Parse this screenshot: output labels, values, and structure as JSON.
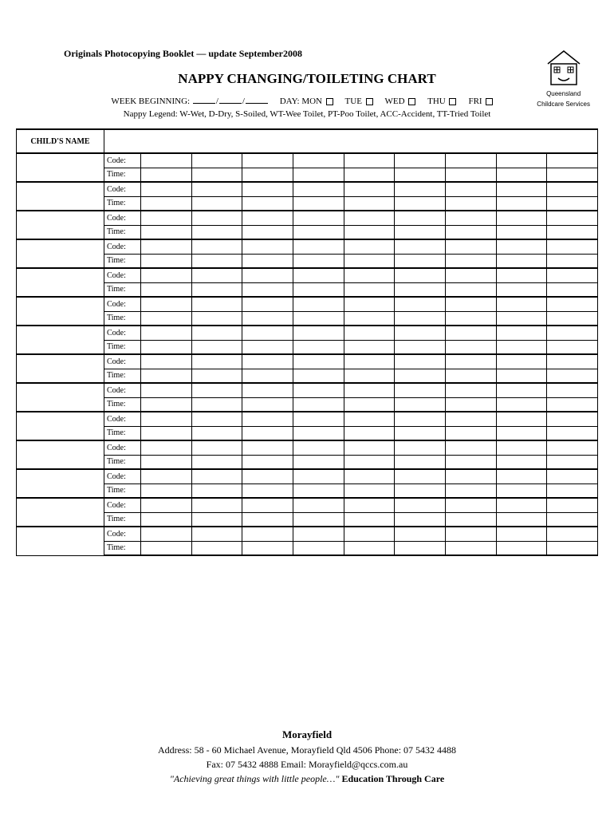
{
  "header": {
    "note": "Originals Photocopying Booklet — update September2008",
    "title": "NAPPY CHANGING/TOILETING CHART",
    "week_label": "WEEK BEGINNING:",
    "day_label": "DAY:",
    "days": [
      "MON",
      "TUE",
      "WED",
      "THU",
      "FRI"
    ],
    "legend": "Nappy Legend: W-Wet, D-Dry, S-Soiled, WT-Wee Toilet, PT-Poo Toilet, ACC-Accident, TT-Tried Toilet"
  },
  "logo": {
    "line1": "Queensland",
    "line2": "Childcare Services"
  },
  "table": {
    "name_header": "CHILD'S NAME",
    "row_labels": [
      "Code:",
      "Time:"
    ],
    "child_rows": 14,
    "data_columns": 9
  },
  "footer": {
    "location": "Morayfield",
    "address": "Address: 58 - 60 Michael Avenue, Morayfield Qld 4506    Phone: 07 5432 4488",
    "contact": "Fax: 07 5432 4888    Email: Morayfield@qccs.com.au",
    "motto_quote": "\"Achieving great things with little people…\"",
    "motto_tag": "Education Through Care"
  }
}
